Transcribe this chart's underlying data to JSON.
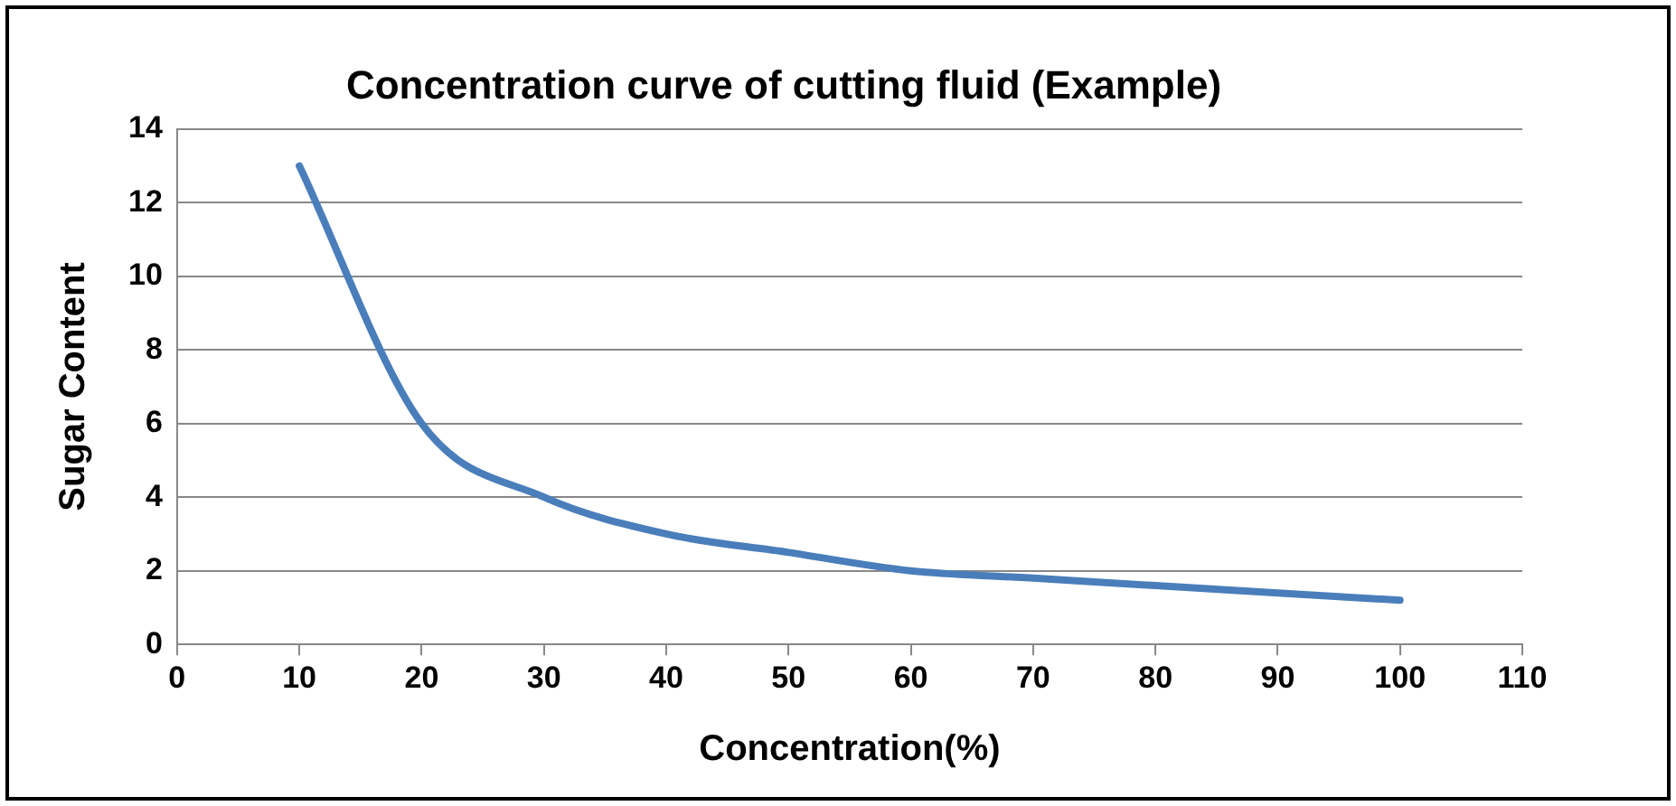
{
  "chart_data": {
    "type": "line",
    "title": "Concentration curve of cutting fluid (Example)",
    "xlabel": "Concentration(%)",
    "ylabel": "Sugar Content",
    "x": [
      10,
      20,
      30,
      40,
      50,
      60,
      70,
      80,
      90,
      100
    ],
    "series": [
      {
        "color": "#4a7ebb",
        "values": [
          13,
          6,
          4,
          3,
          2.5,
          2,
          1.8,
          1.6,
          1.4,
          1.2
        ]
      }
    ],
    "xlim": [
      0,
      110
    ],
    "xticks": [
      0,
      10,
      20,
      30,
      40,
      50,
      60,
      70,
      80,
      90,
      100,
      110
    ],
    "ylim": [
      0,
      14
    ],
    "yticks": [
      0,
      2,
      4,
      6,
      8,
      10,
      12,
      14
    ],
    "grid": "y",
    "legend": false,
    "marker": "none",
    "line_style": "solid"
  }
}
